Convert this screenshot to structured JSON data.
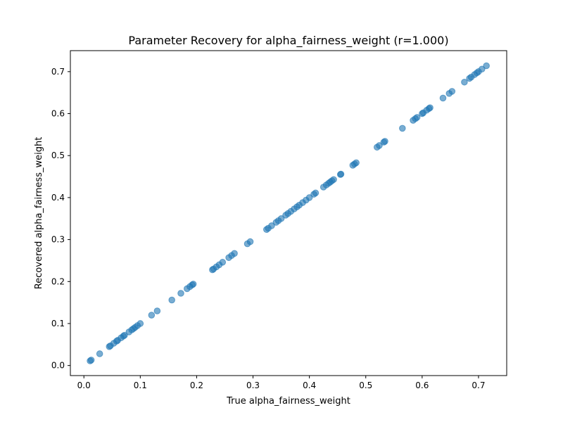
{
  "chart_data": {
    "type": "scatter",
    "title": "Parameter Recovery for alpha_fairness_weight (r=1.000)",
    "xlabel": "True alpha_fairness_weight",
    "ylabel": "Recovered alpha_fairness_weight",
    "xlim": [
      -0.024,
      0.75
    ],
    "ylim": [
      -0.024,
      0.75
    ],
    "xticks": [
      0.0,
      0.1,
      0.2,
      0.3,
      0.4,
      0.5,
      0.6,
      0.7
    ],
    "xtick_labels": [
      "0.0",
      "0.1",
      "0.2",
      "0.3",
      "0.4",
      "0.5",
      "0.6",
      "0.7"
    ],
    "yticks": [
      0.0,
      0.1,
      0.2,
      0.3,
      0.4,
      0.5,
      0.6,
      0.7
    ],
    "ytick_labels": [
      "0.0",
      "0.1",
      "0.2",
      "0.3",
      "0.4",
      "0.5",
      "0.6",
      "0.7"
    ],
    "grid": false,
    "marker_color": "#1f77b4",
    "marker_alpha": 0.6,
    "series": [
      {
        "x": [
          0.011,
          0.013,
          0.028,
          0.045,
          0.047,
          0.053,
          0.058,
          0.06,
          0.066,
          0.07,
          0.072,
          0.08,
          0.085,
          0.088,
          0.091,
          0.095,
          0.1,
          0.12,
          0.13,
          0.156,
          0.172,
          0.183,
          0.188,
          0.192,
          0.194,
          0.228,
          0.23,
          0.235,
          0.24,
          0.246,
          0.257,
          0.262,
          0.267,
          0.29,
          0.295,
          0.324,
          0.327,
          0.333,
          0.341,
          0.345,
          0.35,
          0.358,
          0.362,
          0.367,
          0.373,
          0.378,
          0.382,
          0.388,
          0.394,
          0.4,
          0.408,
          0.411,
          0.425,
          0.43,
          0.434,
          0.437,
          0.44,
          0.443,
          0.455,
          0.456,
          0.477,
          0.48,
          0.483,
          0.52,
          0.524,
          0.532,
          0.534,
          0.565,
          0.584,
          0.588,
          0.591,
          0.6,
          0.602,
          0.608,
          0.612,
          0.614,
          0.637,
          0.648,
          0.653,
          0.675,
          0.684,
          0.687,
          0.693,
          0.697,
          0.7,
          0.706,
          0.714
        ],
        "y": [
          0.011,
          0.013,
          0.028,
          0.045,
          0.047,
          0.053,
          0.058,
          0.06,
          0.066,
          0.07,
          0.072,
          0.08,
          0.085,
          0.088,
          0.091,
          0.095,
          0.1,
          0.12,
          0.13,
          0.156,
          0.172,
          0.183,
          0.188,
          0.192,
          0.194,
          0.228,
          0.23,
          0.235,
          0.24,
          0.246,
          0.257,
          0.262,
          0.267,
          0.29,
          0.295,
          0.324,
          0.327,
          0.333,
          0.341,
          0.345,
          0.35,
          0.358,
          0.362,
          0.367,
          0.373,
          0.378,
          0.382,
          0.388,
          0.394,
          0.4,
          0.408,
          0.411,
          0.425,
          0.43,
          0.434,
          0.437,
          0.44,
          0.443,
          0.455,
          0.456,
          0.477,
          0.48,
          0.483,
          0.52,
          0.524,
          0.532,
          0.534,
          0.565,
          0.584,
          0.588,
          0.591,
          0.6,
          0.602,
          0.608,
          0.612,
          0.614,
          0.637,
          0.648,
          0.653,
          0.675,
          0.684,
          0.687,
          0.693,
          0.697,
          0.7,
          0.706,
          0.714
        ]
      }
    ]
  }
}
